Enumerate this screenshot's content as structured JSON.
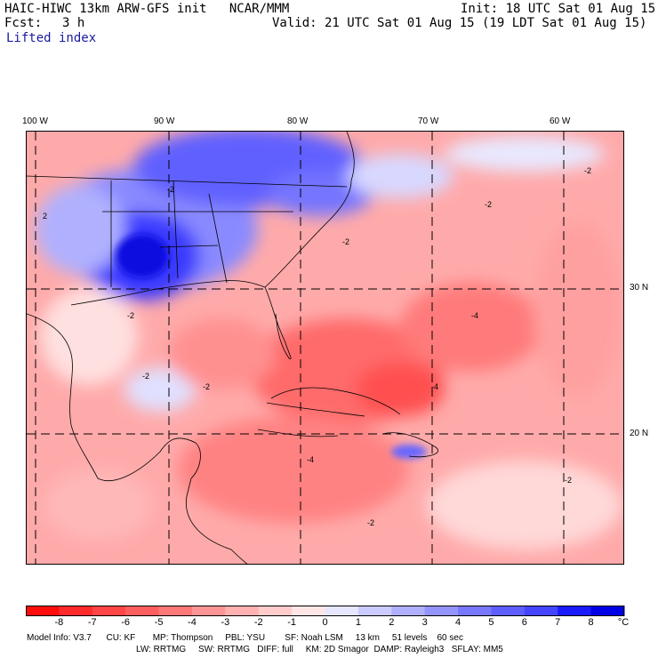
{
  "header": {
    "title": "HAIC-HIWC 13km ARW-GFS init   NCAR/MMM",
    "init": "Init: 18 UTC Sat 01 Aug 15",
    "fcst_label": "Fcst:",
    "fcst_value": "3 h",
    "valid": "Valid: 21 UTC Sat 01 Aug 15 (19 LDT Sat 01 Aug 15)",
    "field": "Lifted index"
  },
  "map": {
    "lon_labels": [
      "100 W",
      "90 W",
      "80 W",
      "70 W",
      "60 W"
    ],
    "lat_labels": [
      "30 N",
      "20 N"
    ],
    "contour_labels": [
      "-2",
      "-2",
      "-2",
      "-2",
      "-2",
      "-2",
      "-2",
      "-4",
      "-4",
      "-4",
      "-2",
      "-2",
      "2"
    ]
  },
  "colorbar": {
    "ticks": [
      "-8",
      "-7",
      "-6",
      "-5",
      "-4",
      "-3",
      "-2",
      "-1",
      "0",
      "1",
      "2",
      "3",
      "4",
      "5",
      "6",
      "7",
      "8"
    ],
    "unit": "°C",
    "colors": [
      "#ff0d0d",
      "#ff2a2a",
      "#ff4545",
      "#ff5e5e",
      "#ff7878",
      "#ff9494",
      "#ffb0b0",
      "#ffcbcb",
      "#ffe6e6",
      "#e6e6ff",
      "#cbcbff",
      "#b0b0ff",
      "#9494ff",
      "#7878ff",
      "#5e5eff",
      "#4545ff",
      "#1a1aff",
      "#0000e6"
    ]
  },
  "footer": {
    "line1": "Model Info: V3.7      CU: KF       MP: Thompson     PBL: YSU        SF: Noah LSM     13 km     51 levels    60 sec",
    "line2": "LW: RRTMG     SW: RRTMG   DIFF: full     KM: 2D Smagor  DAMP: Rayleigh3   SFLAY: MM5"
  }
}
